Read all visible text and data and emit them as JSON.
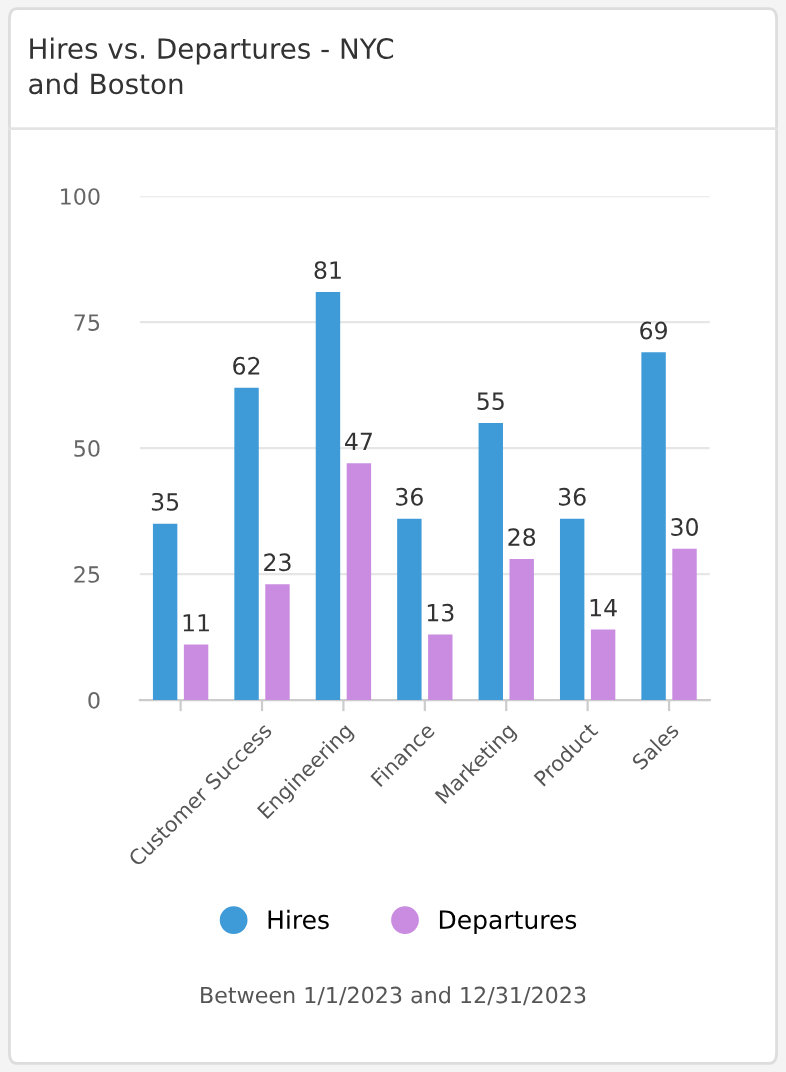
{
  "chart_data": {
    "type": "bar",
    "title": "Hires vs. Departures - NYC\nand Boston",
    "categories": [
      null,
      "Customer Success",
      "Engineering",
      "Finance",
      "Marketing",
      "Product",
      "Sales"
    ],
    "series": [
      {
        "name": "Hires",
        "color": "#3f9bd8",
        "values": [
          35,
          62,
          81,
          36,
          55,
          36,
          69
        ]
      },
      {
        "name": "Departures",
        "color": "#c98ce0",
        "values": [
          11,
          23,
          47,
          13,
          28,
          14,
          30
        ]
      }
    ],
    "ylim": [
      0,
      100
    ],
    "yticks": [
      0,
      25,
      50,
      75,
      100
    ],
    "grid": "y",
    "data_labels": true,
    "legend": "bottom",
    "annotations": [
      "Between 1/1/2023 and 12/31/2023"
    ]
  }
}
